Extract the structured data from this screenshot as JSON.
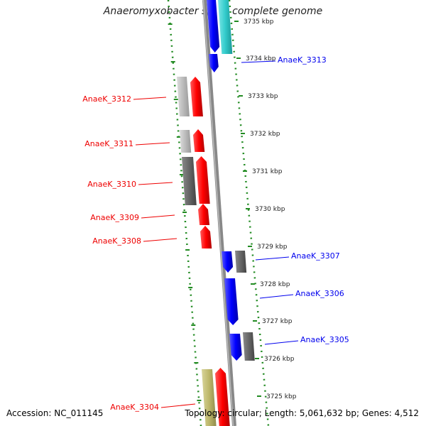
{
  "title": "Anaeromyxobacter sp. K, complete genome",
  "footer": {
    "accession": "Accession: NC_011145",
    "topology": "Topology: circular; Length: 5,061,632 bp; Genes: 4,512"
  },
  "colors": {
    "forward": "#0000ee",
    "reverse": "#ee0000",
    "cyan": "#33cccc",
    "gray_dark": "#666666",
    "gray_light": "#bbbbbb",
    "olive": "#bdb76b",
    "dots": "#228b22"
  },
  "coordinates": [
    {
      "label": "3735 kbp"
    },
    {
      "label": "3734 kbp"
    },
    {
      "label": "3733 kbp"
    },
    {
      "label": "3732 kbp"
    },
    {
      "label": "3731 kbp"
    },
    {
      "label": "3730 kbp"
    },
    {
      "label": "3729 kbp"
    },
    {
      "label": "3728 kbp"
    },
    {
      "label": "3727 kbp"
    },
    {
      "label": "3726 kbp"
    },
    {
      "label": "3725 kbp"
    }
  ],
  "gene_labels": [
    {
      "name": "AnaeK_3313",
      "strand": "forward"
    },
    {
      "name": "AnaeK_3312",
      "strand": "reverse"
    },
    {
      "name": "AnaeK_3311",
      "strand": "reverse"
    },
    {
      "name": "AnaeK_3310",
      "strand": "reverse"
    },
    {
      "name": "AnaeK_3309",
      "strand": "reverse"
    },
    {
      "name": "AnaeK_3308",
      "strand": "reverse"
    },
    {
      "name": "AnaeK_3307",
      "strand": "forward"
    },
    {
      "name": "AnaeK_3306",
      "strand": "forward"
    },
    {
      "name": "AnaeK_3305",
      "strand": "forward"
    },
    {
      "name": "AnaeK_3304",
      "strand": "reverse"
    }
  ]
}
